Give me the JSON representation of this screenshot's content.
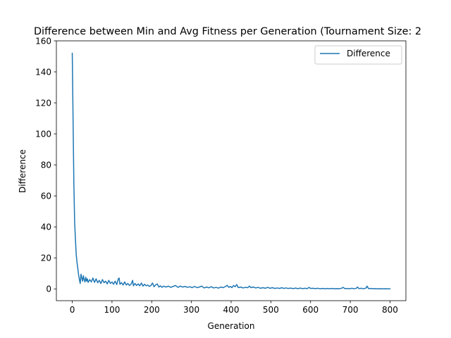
{
  "chart_data": {
    "type": "line",
    "title": "Difference between Min and Avg Fitness per Generation (Tournament Size: 2",
    "xlabel": "Generation",
    "ylabel": "Difference",
    "xlim": [
      -40,
      840
    ],
    "ylim": [
      -7.6,
      160
    ],
    "xticks": [
      0,
      100,
      200,
      300,
      400,
      500,
      600,
      700,
      800
    ],
    "yticks": [
      0,
      20,
      40,
      60,
      80,
      100,
      120,
      140,
      160
    ],
    "grid": false,
    "legend_position": "top-right",
    "series": [
      {
        "name": "Difference",
        "color": "#1f77b4",
        "points": [
          [
            0,
            152
          ],
          [
            2,
            110
          ],
          [
            4,
            68
          ],
          [
            6,
            43
          ],
          [
            8,
            32
          ],
          [
            10,
            22
          ],
          [
            12,
            17
          ],
          [
            14,
            13
          ],
          [
            16,
            9
          ],
          [
            18,
            6
          ],
          [
            20,
            3.5
          ],
          [
            22,
            9.5
          ],
          [
            24,
            7
          ],
          [
            26,
            5
          ],
          [
            28,
            8.5
          ],
          [
            30,
            6
          ],
          [
            32,
            4.5
          ],
          [
            34,
            7.5
          ],
          [
            36,
            5
          ],
          [
            38,
            6.5
          ],
          [
            40,
            4.2
          ],
          [
            44,
            6
          ],
          [
            48,
            4.5
          ],
          [
            52,
            7
          ],
          [
            56,
            4.2
          ],
          [
            60,
            6.5
          ],
          [
            64,
            4
          ],
          [
            68,
            5.5
          ],
          [
            72,
            3.5
          ],
          [
            76,
            6
          ],
          [
            80,
            4
          ],
          [
            84,
            5
          ],
          [
            88,
            3.2
          ],
          [
            92,
            5.5
          ],
          [
            96,
            3.5
          ],
          [
            100,
            4.5
          ],
          [
            104,
            3
          ],
          [
            108,
            5
          ],
          [
            112,
            2.8
          ],
          [
            116,
            6.5
          ],
          [
            118,
            7
          ],
          [
            120,
            3
          ],
          [
            124,
            4
          ],
          [
            128,
            2.5
          ],
          [
            132,
            4.5
          ],
          [
            136,
            2.5
          ],
          [
            140,
            3.5
          ],
          [
            144,
            2.2
          ],
          [
            148,
            3
          ],
          [
            152,
            5.5
          ],
          [
            154,
            2
          ],
          [
            158,
            3.5
          ],
          [
            162,
            2.2
          ],
          [
            166,
            3.2
          ],
          [
            170,
            2
          ],
          [
            174,
            3.8
          ],
          [
            178,
            1.8
          ],
          [
            182,
            3
          ],
          [
            186,
            2
          ],
          [
            190,
            2.5
          ],
          [
            194,
            1.6
          ],
          [
            198,
            2.2
          ],
          [
            202,
            3.8
          ],
          [
            206,
            1.4
          ],
          [
            210,
            2.6
          ],
          [
            214,
            3.2
          ],
          [
            218,
            1.2
          ],
          [
            222,
            2
          ],
          [
            226,
            1
          ],
          [
            230,
            1.8
          ],
          [
            236,
            1.2
          ],
          [
            242,
            1.8
          ],
          [
            248,
            1
          ],
          [
            254,
            1.6
          ],
          [
            260,
            2.2
          ],
          [
            266,
            1
          ],
          [
            272,
            1.8
          ],
          [
            278,
            1.2
          ],
          [
            284,
            1.6
          ],
          [
            290,
            1
          ],
          [
            296,
            1.4
          ],
          [
            302,
            0.8
          ],
          [
            308,
            1.6
          ],
          [
            314,
            0.8
          ],
          [
            320,
            1.2
          ],
          [
            326,
            1.8
          ],
          [
            332,
            0.6
          ],
          [
            338,
            1.2
          ],
          [
            344,
            0.7
          ],
          [
            350,
            1.4
          ],
          [
            356,
            0.6
          ],
          [
            362,
            1
          ],
          [
            368,
            0.5
          ],
          [
            374,
            1.2
          ],
          [
            380,
            0.8
          ],
          [
            386,
            1.6
          ],
          [
            390,
            2.3
          ],
          [
            394,
            1
          ],
          [
            398,
            1.6
          ],
          [
            402,
            0.8
          ],
          [
            406,
            2.2
          ],
          [
            410,
            1.4
          ],
          [
            414,
            2.8
          ],
          [
            418,
            0.8
          ],
          [
            424,
            1.2
          ],
          [
            430,
            0.6
          ],
          [
            436,
            1
          ],
          [
            442,
            0.8
          ],
          [
            446,
            1.8
          ],
          [
            450,
            0.8
          ],
          [
            456,
            1.2
          ],
          [
            462,
            0.6
          ],
          [
            468,
            1
          ],
          [
            474,
            0.4
          ],
          [
            480,
            0.8
          ],
          [
            486,
            0.4
          ],
          [
            492,
            1
          ],
          [
            498,
            0.4
          ],
          [
            504,
            0.8
          ],
          [
            510,
            0.3
          ],
          [
            516,
            0.6
          ],
          [
            522,
            0.3
          ],
          [
            528,
            0.8
          ],
          [
            532,
            0.3
          ],
          [
            538,
            0.6
          ],
          [
            544,
            0.3
          ],
          [
            550,
            0.5
          ],
          [
            556,
            0.2
          ],
          [
            562,
            0.5
          ],
          [
            568,
            0.2
          ],
          [
            574,
            0.5
          ],
          [
            580,
            0.2
          ],
          [
            586,
            0.4
          ],
          [
            592,
            0.2
          ],
          [
            596,
            1
          ],
          [
            600,
            0.3
          ],
          [
            606,
            0.4
          ],
          [
            612,
            0.2
          ],
          [
            618,
            0.4
          ],
          [
            624,
            0.1
          ],
          [
            630,
            0.3
          ],
          [
            636,
            0.1
          ],
          [
            642,
            0.3
          ],
          [
            648,
            0.1
          ],
          [
            654,
            0.3
          ],
          [
            660,
            0.1
          ],
          [
            666,
            0.2
          ],
          [
            672,
            0.1
          ],
          [
            678,
            0.4
          ],
          [
            682,
            1
          ],
          [
            686,
            0.2
          ],
          [
            692,
            0.3
          ],
          [
            698,
            0.1
          ],
          [
            704,
            0.4
          ],
          [
            710,
            0.1
          ],
          [
            716,
            0.5
          ],
          [
            718,
            1.2
          ],
          [
            722,
            0.2
          ],
          [
            728,
            0.4
          ],
          [
            734,
            0.1
          ],
          [
            740,
            0.6
          ],
          [
            742,
            1.8
          ],
          [
            746,
            0.2
          ],
          [
            752,
            0.3
          ],
          [
            758,
            0.1
          ],
          [
            764,
            0.2
          ],
          [
            770,
            0.05
          ],
          [
            776,
            0.15
          ],
          [
            782,
            0.05
          ],
          [
            788,
            0.1
          ],
          [
            794,
            0.05
          ],
          [
            800,
            0.05
          ]
        ]
      }
    ]
  }
}
